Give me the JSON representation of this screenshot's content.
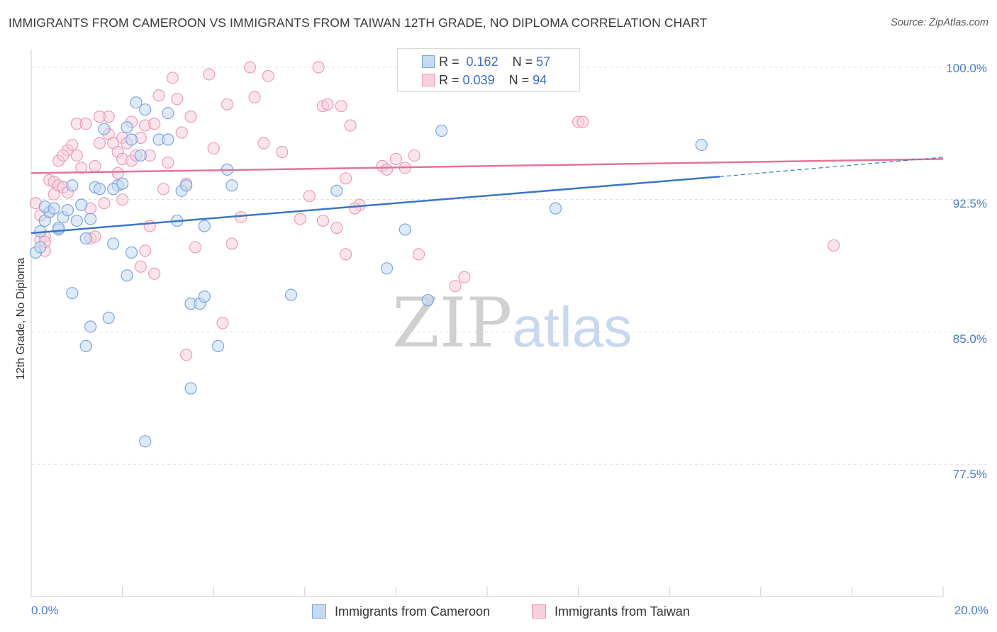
{
  "header": {
    "title": "IMMIGRANTS FROM CAMEROON VS IMMIGRANTS FROM TAIWAN 12TH GRADE, NO DIPLOMA CORRELATION CHART",
    "source": "Source: ZipAtlas.com"
  },
  "watermark": {
    "zip": "ZIP",
    "atlas": "atlas"
  },
  "legend": {
    "rows": [
      {
        "r_label": "R =",
        "r_value": "0.162",
        "n_label": "N =",
        "n_value": "57"
      },
      {
        "r_label": "R =",
        "r_value": "0.039",
        "n_label": "N =",
        "n_value": "94"
      }
    ]
  },
  "colors": {
    "cameroon": "#7aa6e0",
    "cameroon_fill": "#c5d9f3",
    "cameroon_line": "#3a76c8",
    "taiwan": "#ec9db6",
    "taiwan_fill": "#f8cfdc",
    "taiwan_line": "#e4739a",
    "tick_text": "#4a7cc9"
  },
  "chart_data": {
    "type": "scatter",
    "title": "IMMIGRANTS FROM CAMEROON VS IMMIGRANTS FROM TAIWAN 12TH GRADE, NO DIPLOMA CORRELATION CHART",
    "xlabel": "",
    "ylabel": "12th Grade, No Diploma",
    "xlim": [
      0,
      20
    ],
    "ylim": [
      70,
      101
    ],
    "x_tick_labels": [
      "0.0%",
      "20.0%"
    ],
    "y_ticks": [
      77.5,
      85.0,
      92.5,
      100.0
    ],
    "y_tick_labels": [
      "77.5%",
      "85.0%",
      "92.5%",
      "100.0%"
    ],
    "grid": true,
    "legend_position": "top-center",
    "series": [
      {
        "name": "Immigrants from Cameroon",
        "stats": {
          "R": 0.162,
          "N": 57
        },
        "trend": {
          "x": [
            0.0,
            15.1
          ],
          "y": [
            90.6,
            93.8
          ],
          "dashed_to": [
            20.0,
            94.9
          ]
        },
        "points": [
          [
            0.1,
            89.5
          ],
          [
            0.2,
            89.8
          ],
          [
            0.2,
            90.7
          ],
          [
            0.3,
            91.3
          ],
          [
            0.4,
            91.8
          ],
          [
            0.3,
            92.1
          ],
          [
            0.5,
            92.0
          ],
          [
            0.6,
            90.8
          ],
          [
            0.6,
            90.9
          ],
          [
            0.7,
            91.5
          ],
          [
            0.8,
            91.9
          ],
          [
            0.9,
            93.3
          ],
          [
            1.0,
            91.3
          ],
          [
            1.1,
            92.2
          ],
          [
            1.2,
            90.3
          ],
          [
            1.3,
            91.4
          ],
          [
            1.4,
            93.2
          ],
          [
            1.5,
            93.1
          ],
          [
            1.6,
            96.5
          ],
          [
            1.8,
            90.0
          ],
          [
            1.9,
            93.3
          ],
          [
            2.0,
            93.4
          ],
          [
            2.1,
            96.6
          ],
          [
            2.2,
            95.9
          ],
          [
            2.3,
            98.0
          ],
          [
            2.4,
            95.0
          ],
          [
            2.5,
            97.6
          ],
          [
            2.8,
            95.9
          ],
          [
            3.0,
            95.9
          ],
          [
            3.0,
            97.4
          ],
          [
            3.2,
            91.3
          ],
          [
            3.3,
            93.0
          ],
          [
            3.4,
            93.3
          ],
          [
            3.5,
            86.6
          ],
          [
            3.7,
            86.6
          ],
          [
            3.8,
            87.0
          ],
          [
            3.8,
            91.0
          ],
          [
            4.3,
            94.2
          ],
          [
            4.4,
            93.3
          ],
          [
            4.1,
            84.2
          ],
          [
            1.3,
            85.3
          ],
          [
            1.7,
            85.8
          ],
          [
            1.2,
            84.2
          ],
          [
            0.9,
            87.2
          ],
          [
            2.1,
            88.2
          ],
          [
            2.2,
            89.5
          ],
          [
            2.5,
            78.8
          ],
          [
            3.5,
            81.8
          ],
          [
            5.7,
            87.1
          ],
          [
            6.7,
            93.0
          ],
          [
            7.8,
            88.6
          ],
          [
            8.2,
            90.8
          ],
          [
            8.7,
            86.8
          ],
          [
            9.0,
            96.4
          ],
          [
            11.5,
            92.0
          ],
          [
            14.7,
            95.6
          ],
          [
            1.8,
            93.1
          ]
        ]
      },
      {
        "name": "Immigrants from Taiwan",
        "stats": {
          "R": 0.039,
          "N": 94
        },
        "trend": {
          "x": [
            0.0,
            20.0
          ],
          "y": [
            94.0,
            94.8
          ]
        },
        "points": [
          [
            0.1,
            92.3
          ],
          [
            0.2,
            91.6
          ],
          [
            0.2,
            90.2
          ],
          [
            0.3,
            90.4
          ],
          [
            0.3,
            89.6
          ],
          [
            0.4,
            93.6
          ],
          [
            0.5,
            93.5
          ],
          [
            0.5,
            92.8
          ],
          [
            0.6,
            93.3
          ],
          [
            0.6,
            94.7
          ],
          [
            0.7,
            93.2
          ],
          [
            0.8,
            92.9
          ],
          [
            0.8,
            95.3
          ],
          [
            0.9,
            95.6
          ],
          [
            1.0,
            95.0
          ],
          [
            1.0,
            96.8
          ],
          [
            1.1,
            94.3
          ],
          [
            1.2,
            96.8
          ],
          [
            1.3,
            92.0
          ],
          [
            1.3,
            90.3
          ],
          [
            1.4,
            94.4
          ],
          [
            1.5,
            95.7
          ],
          [
            1.6,
            92.3
          ],
          [
            1.7,
            96.2
          ],
          [
            1.7,
            97.2
          ],
          [
            1.8,
            95.7
          ],
          [
            1.9,
            94.0
          ],
          [
            1.9,
            95.2
          ],
          [
            2.0,
            94.8
          ],
          [
            2.0,
            96.0
          ],
          [
            2.1,
            95.7
          ],
          [
            2.2,
            94.7
          ],
          [
            2.2,
            96.9
          ],
          [
            2.3,
            95.0
          ],
          [
            2.4,
            96.0
          ],
          [
            2.5,
            96.7
          ],
          [
            2.6,
            95.0
          ],
          [
            2.6,
            91.0
          ],
          [
            2.7,
            96.8
          ],
          [
            2.8,
            98.4
          ],
          [
            2.9,
            93.1
          ],
          [
            3.0,
            94.6
          ],
          [
            3.1,
            99.4
          ],
          [
            3.2,
            98.2
          ],
          [
            3.3,
            96.3
          ],
          [
            3.4,
            93.4
          ],
          [
            3.5,
            97.2
          ],
          [
            3.6,
            89.8
          ],
          [
            3.9,
            99.6
          ],
          [
            4.0,
            95.4
          ],
          [
            4.3,
            97.9
          ],
          [
            4.4,
            90.0
          ],
          [
            4.6,
            91.5
          ],
          [
            4.8,
            100.0
          ],
          [
            4.9,
            98.3
          ],
          [
            5.1,
            95.7
          ],
          [
            5.2,
            99.5
          ],
          [
            5.5,
            95.2
          ],
          [
            5.9,
            91.4
          ],
          [
            6.1,
            92.7
          ],
          [
            6.3,
            100.0
          ],
          [
            6.4,
            97.8
          ],
          [
            6.4,
            91.3
          ],
          [
            6.5,
            97.9
          ],
          [
            6.7,
            90.9
          ],
          [
            6.8,
            97.8
          ],
          [
            6.9,
            93.7
          ],
          [
            7.0,
            96.7
          ],
          [
            7.2,
            92.2
          ],
          [
            7.1,
            92.0
          ],
          [
            7.7,
            94.4
          ],
          [
            7.8,
            94.2
          ],
          [
            8.0,
            94.8
          ],
          [
            8.2,
            94.3
          ],
          [
            8.4,
            95.0
          ],
          [
            8.5,
            89.4
          ],
          [
            9.3,
            87.6
          ],
          [
            9.5,
            88.1
          ],
          [
            11.9,
            100.0
          ],
          [
            12.0,
            96.9
          ],
          [
            12.1,
            96.9
          ],
          [
            17.6,
            89.9
          ],
          [
            4.2,
            85.5
          ],
          [
            3.4,
            83.7
          ],
          [
            2.7,
            88.3
          ],
          [
            2.5,
            89.6
          ],
          [
            2.4,
            88.7
          ],
          [
            1.5,
            97.2
          ],
          [
            0.7,
            95.0
          ],
          [
            1.4,
            90.4
          ],
          [
            0.3,
            90.1
          ],
          [
            6.9,
            89.4
          ],
          [
            2.0,
            92.5
          ],
          [
            0.4,
            91.8
          ]
        ]
      }
    ]
  },
  "bottom_legend": {
    "cameroon_label": "Immigrants from Cameroon",
    "taiwan_label": "Immigrants from Taiwan"
  }
}
